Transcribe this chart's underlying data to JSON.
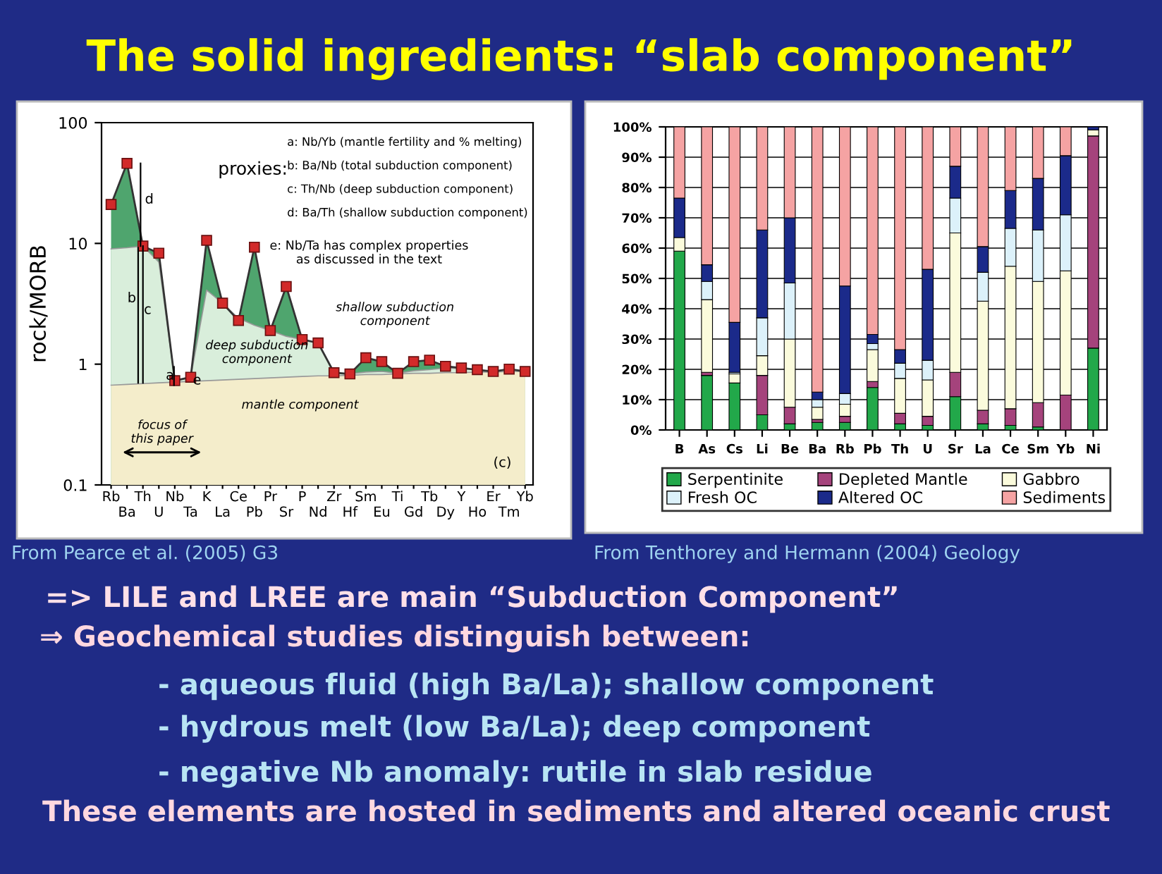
{
  "chart_data": [
    {
      "type": "other",
      "title": "The solid ingredients: “slab component”",
      "annotations": [
        "=> LILE and LREE are main “Subduction Component”",
        "⇒ Geochemical studies distinguish between:",
        "- aqueous fluid (high Ba/La); shallow component",
        "- hydrous melt (low Ba/La); deep component",
        "- negative Nb anomaly: rutile in slab residue",
        "These elements are hosted in sediments and altered oceanic crust"
      ]
    },
    {
      "type": "line",
      "ylabel": "rock/MORB",
      "log": "y",
      "ylim": [
        0.1,
        100
      ],
      "yticks": [
        0.1,
        1,
        10,
        100
      ],
      "marker": "square",
      "categories": [
        "Rb",
        "Ba",
        "Th",
        "U",
        "Nb",
        "Ta",
        "K",
        "La",
        "Ce",
        "Pb",
        "Pr",
        "Sr",
        "P",
        "Nd",
        "Zr",
        "Hf",
        "Sm",
        "Eu",
        "Ti",
        "Gd",
        "Tb",
        "Dy",
        "Y",
        "Ho",
        "Er",
        "Tm",
        "Yb"
      ],
      "series": [
        {
          "type": "area",
          "color": "#4fa56e",
          "values": [
            21,
            46,
            9.5,
            8.3,
            0.73,
            0.78,
            10.6,
            3.2,
            2.3,
            9.3,
            1.9,
            4.4,
            1.6,
            1.5,
            0.85,
            0.83,
            1.13,
            1.05,
            0.84,
            1.05,
            1.08,
            0.96,
            0.93,
            0.9,
            0.87,
            0.91,
            0.87
          ]
        },
        {
          "type": "area",
          "marker": "none",
          "color": "#d9eedb",
          "values": [
            9,
            9.2,
            9.5,
            7,
            0.73,
            0.78,
            4.1,
            3.2,
            2.4,
            2.1,
            1.9,
            1.7,
            1.6,
            1.5,
            0.85,
            0.83,
            0.86,
            0.87,
            0.84,
            0.88,
            0.9,
            0.93,
            0.92,
            0.9,
            0.87,
            0.91,
            0.87
          ]
        },
        {
          "type": "area",
          "marker": "none",
          "color": "#f4edcb",
          "values": [
            0.67,
            0.68,
            0.69,
            0.7,
            0.71,
            0.72,
            0.73,
            0.74,
            0.75,
            0.76,
            0.77,
            0.78,
            0.79,
            0.8,
            0.8,
            0.81,
            0.82,
            0.82,
            0.83,
            0.84,
            0.84,
            0.85,
            0.85,
            0.86,
            0.86,
            0.87,
            0.87
          ]
        }
      ],
      "annotations": [
        "proxies:",
        "a: Nb/Yb (mantle fertility and % melting)",
        "b: Ba/Nb (total subduction component)",
        "c: Th/Nb (deep subduction component)",
        "d: Ba/Th (shallow subduction component)",
        "e: Nb/Ta has complex properties\nas discussed in the text",
        "shallow subduction\ncomponent",
        "deep subduction\ncomponent",
        "mantle component",
        "focus of\nthis paper",
        "(c)",
        "a",
        "b",
        "c",
        "d",
        "e",
        "From Pearce et al. (2005) G3"
      ]
    },
    {
      "type": "bar",
      "stacked": true,
      "ylim": [
        0,
        100
      ],
      "yticks": [
        {
          "value": 0,
          "label": "0%"
        },
        {
          "value": 10,
          "label": "10%"
        },
        {
          "value": 20,
          "label": "20%"
        },
        {
          "value": 30,
          "label": "30%"
        },
        {
          "value": 40,
          "label": "40%"
        },
        {
          "value": 50,
          "label": "50%"
        },
        {
          "value": 60,
          "label": "60%"
        },
        {
          "value": 70,
          "label": "70%"
        },
        {
          "value": 80,
          "label": "80%"
        },
        {
          "value": 90,
          "label": "90%"
        },
        {
          "value": 100,
          "label": "100%"
        }
      ],
      "grid": "y",
      "legend": "bottom",
      "categories": [
        "B",
        "As",
        "Cs",
        "Li",
        "Be",
        "Ba",
        "Rb",
        "Pb",
        "Th",
        "U",
        "Sr",
        "La",
        "Ce",
        "Sm",
        "Yb",
        "Ni"
      ],
      "series": [
        {
          "name": "Serpentinite",
          "color": "#22a84a",
          "values": [
            59,
            18,
            15.5,
            5,
            2,
            2.5,
            2.5,
            14,
            2,
            1.5,
            11,
            2,
            1.5,
            1,
            0,
            27
          ]
        },
        {
          "name": "Depleted Mantle",
          "color": "#a5437c",
          "values": [
            0,
            1,
            0,
            13,
            5.5,
            1,
            2,
            2,
            3.5,
            3,
            8,
            4.5,
            5.5,
            8,
            11.5,
            70
          ]
        },
        {
          "name": "Gabbro",
          "color": "#fbfbdc",
          "values": [
            4.5,
            24,
            3,
            6.5,
            22.5,
            4,
            4,
            10.5,
            11.5,
            12,
            46,
            36,
            47,
            40,
            41,
            2
          ]
        },
        {
          "name": "Fresh OC",
          "color": "#dcf1fa",
          "values": [
            0,
            6,
            0.5,
            12.5,
            18.5,
            2.5,
            3.5,
            2,
            5,
            6.5,
            11.5,
            9.5,
            12.5,
            17,
            18.5,
            0
          ]
        },
        {
          "name": "Altered OC",
          "color": "#1b2a8a",
          "values": [
            13,
            5.5,
            16.5,
            29,
            21.5,
            2.5,
            35.5,
            3,
            4.5,
            30,
            10.5,
            8.5,
            12.5,
            17,
            19.5,
            1
          ]
        },
        {
          "name": "Sediments",
          "color": "#f5a3a3",
          "values": [
            23.5,
            45.5,
            64.5,
            34,
            30,
            87.5,
            52.5,
            68.5,
            73.5,
            47,
            13,
            39.5,
            21,
            17,
            9.5,
            0
          ]
        }
      ],
      "annotations": [
        "From Tenthorey and Hermann (2004) Geology"
      ]
    }
  ]
}
